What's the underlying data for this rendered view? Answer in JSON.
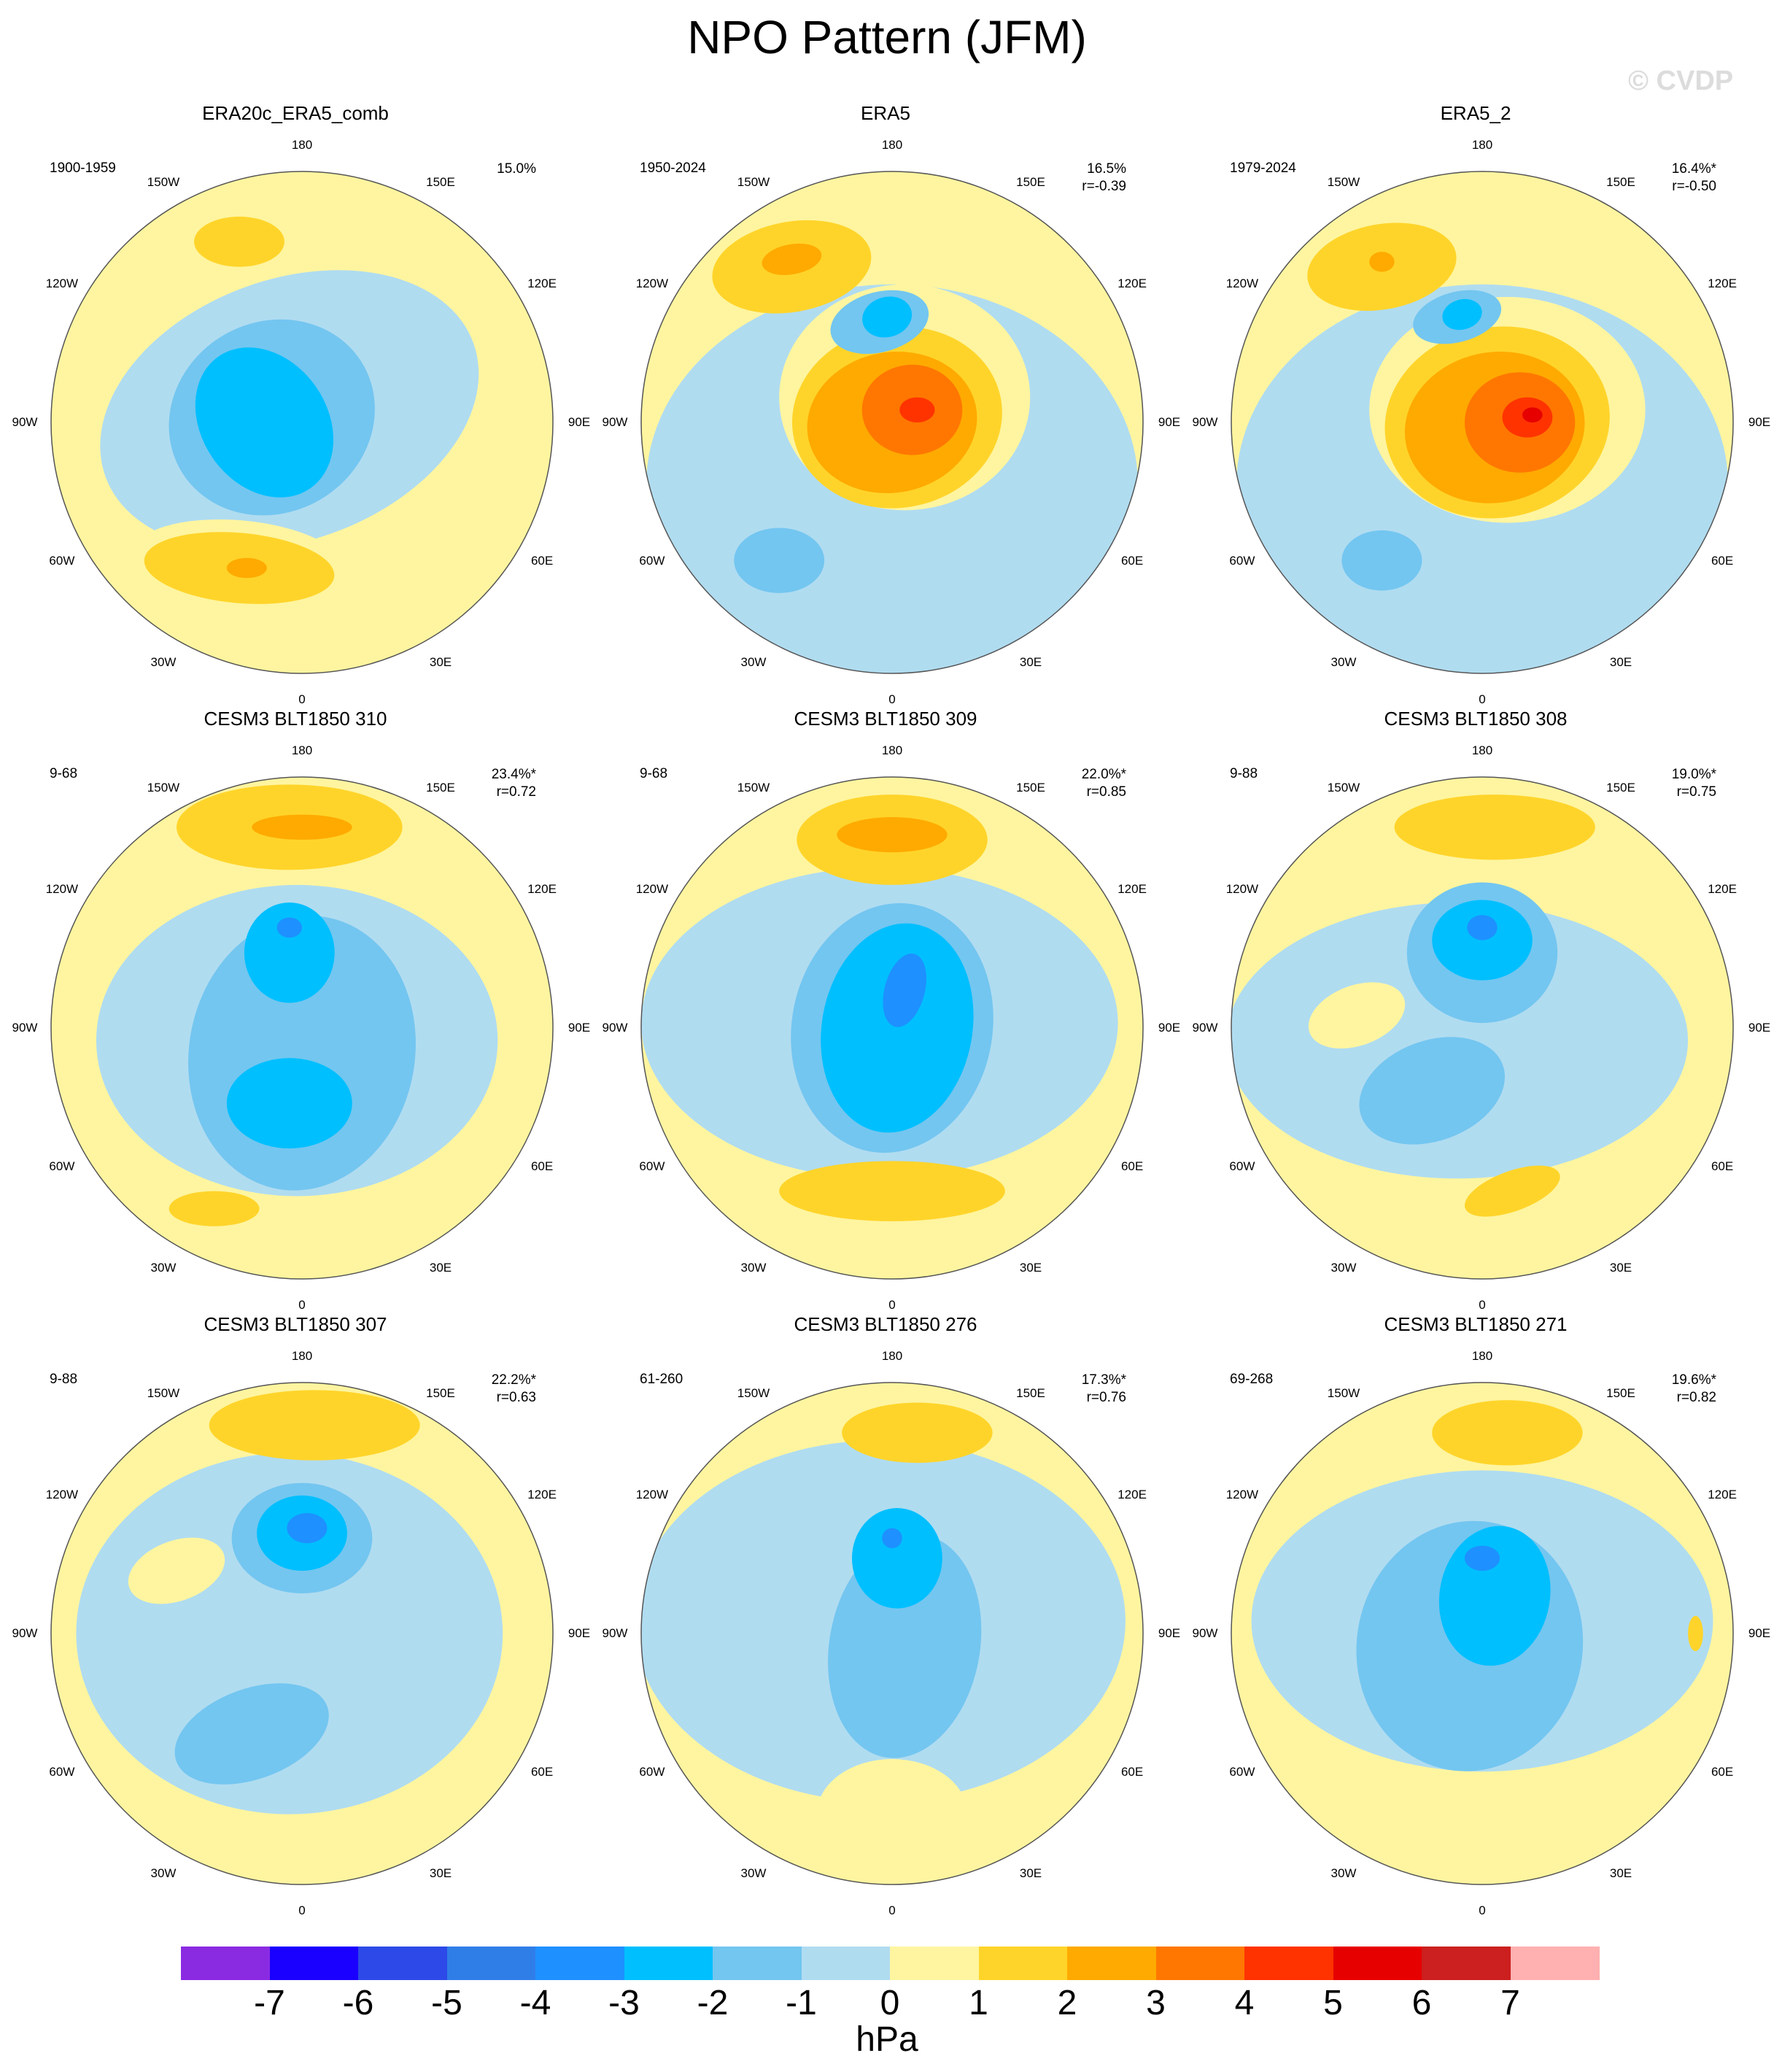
{
  "title": "NPO Pattern (JFM)",
  "watermark": "© CVDP",
  "chart_data": {
    "type": "heatmap",
    "projection": "north polar stereographic",
    "unit": "hPa",
    "longitude_labels": [
      "180",
      "150E",
      "120E",
      "90E",
      "60E",
      "30E",
      "0",
      "30W",
      "60W",
      "90W",
      "120W",
      "150W"
    ],
    "colorbar": {
      "ticks": [
        "-7",
        "-6",
        "-5",
        "-4",
        "-3",
        "-2",
        "-1",
        "0",
        "1",
        "2",
        "3",
        "4",
        "5",
        "6",
        "7"
      ],
      "colors": [
        "#8a2be2",
        "#1a00ff",
        "#2d4ae8",
        "#2f7ee8",
        "#1e90ff",
        "#00bfff",
        "#73c6f0",
        "#b0dcf0",
        "#fff5a0",
        "#ffd42a",
        "#ffaa00",
        "#ff7700",
        "#ff3300",
        "#e60000",
        "#cc1f1f",
        "#ffb0b0"
      ]
    },
    "panels": [
      {
        "title": "ERA20c_ERA5_comb",
        "years": "1900-1959",
        "variance": "15.0%",
        "r": "",
        "fields": [
          {
            "color": "#b0dcf0",
            "cx": -0.05,
            "cy": -0.05,
            "rx": 0.78,
            "ry": 0.52,
            "rot": -20
          },
          {
            "color": "#73c6f0",
            "cx": -0.12,
            "cy": -0.02,
            "rx": 0.42,
            "ry": 0.38,
            "rot": -30
          },
          {
            "color": "#00bfff",
            "cx": -0.15,
            "cy": 0.0,
            "rx": 0.25,
            "ry": 0.32,
            "rot": -35
          },
          {
            "color": "#fff5a0",
            "cx": -0.25,
            "cy": 0.55,
            "rx": 0.42,
            "ry": 0.16,
            "rot": 5
          },
          {
            "color": "#ffd42a",
            "cx": -0.25,
            "cy": 0.58,
            "rx": 0.38,
            "ry": 0.14,
            "rot": 5
          },
          {
            "color": "#ffaa00",
            "cx": -0.22,
            "cy": 0.58,
            "rx": 0.08,
            "ry": 0.04,
            "rot": 0
          },
          {
            "color": "#ffd42a",
            "cx": -0.25,
            "cy": -0.72,
            "rx": 0.18,
            "ry": 0.1,
            "rot": 0
          }
        ]
      },
      {
        "title": "ERA5",
        "years": "1950-2024",
        "variance": "16.5%",
        "r": "r=-0.39",
        "fields": [
          {
            "color": "#b0dcf0",
            "cx": 0.0,
            "cy": 0.25,
            "rx": 0.98,
            "ry": 0.8,
            "rot": 0
          },
          {
            "color": "#fff5a0",
            "cx": 0.05,
            "cy": -0.1,
            "rx": 0.5,
            "ry": 0.45,
            "rot": 0
          },
          {
            "color": "#ffd42a",
            "cx": 0.02,
            "cy": -0.02,
            "rx": 0.42,
            "ry": 0.36,
            "rot": -10
          },
          {
            "color": "#ffaa00",
            "cx": 0.0,
            "cy": 0.0,
            "rx": 0.34,
            "ry": 0.28,
            "rot": -10
          },
          {
            "color": "#ff7700",
            "cx": 0.08,
            "cy": -0.05,
            "rx": 0.2,
            "ry": 0.18,
            "rot": 0
          },
          {
            "color": "#ff3300",
            "cx": 0.1,
            "cy": -0.05,
            "rx": 0.07,
            "ry": 0.05,
            "rot": 0
          },
          {
            "color": "#ffd42a",
            "cx": -0.4,
            "cy": -0.62,
            "rx": 0.32,
            "ry": 0.18,
            "rot": -10
          },
          {
            "color": "#ffaa00",
            "cx": -0.4,
            "cy": -0.65,
            "rx": 0.12,
            "ry": 0.06,
            "rot": -10
          },
          {
            "color": "#73c6f0",
            "cx": -0.05,
            "cy": -0.4,
            "rx": 0.2,
            "ry": 0.12,
            "rot": -15
          },
          {
            "color": "#00bfff",
            "cx": -0.02,
            "cy": -0.42,
            "rx": 0.1,
            "ry": 0.08,
            "rot": -15
          },
          {
            "color": "#73c6f0",
            "cx": -0.45,
            "cy": 0.55,
            "rx": 0.18,
            "ry": 0.13,
            "rot": 0
          }
        ]
      },
      {
        "title": "ERA5_2",
        "years": "1979-2024",
        "variance": "16.4%*",
        "r": "r=-0.50",
        "fields": [
          {
            "color": "#b0dcf0",
            "cx": 0.0,
            "cy": 0.25,
            "rx": 0.98,
            "ry": 0.8,
            "rot": 0
          },
          {
            "color": "#fff5a0",
            "cx": 0.1,
            "cy": -0.05,
            "rx": 0.55,
            "ry": 0.45,
            "rot": 0
          },
          {
            "color": "#ffd42a",
            "cx": 0.06,
            "cy": 0.0,
            "rx": 0.45,
            "ry": 0.38,
            "rot": -10
          },
          {
            "color": "#ffaa00",
            "cx": 0.05,
            "cy": 0.02,
            "rx": 0.36,
            "ry": 0.3,
            "rot": -10
          },
          {
            "color": "#ff7700",
            "cx": 0.15,
            "cy": 0.0,
            "rx": 0.22,
            "ry": 0.2,
            "rot": 0
          },
          {
            "color": "#ff3300",
            "cx": 0.18,
            "cy": -0.02,
            "rx": 0.1,
            "ry": 0.08,
            "rot": 0
          },
          {
            "color": "#e60000",
            "cx": 0.2,
            "cy": -0.03,
            "rx": 0.04,
            "ry": 0.03,
            "rot": 0
          },
          {
            "color": "#ffd42a",
            "cx": -0.4,
            "cy": -0.62,
            "rx": 0.3,
            "ry": 0.17,
            "rot": -10
          },
          {
            "color": "#ffaa00",
            "cx": -0.4,
            "cy": -0.64,
            "rx": 0.05,
            "ry": 0.04,
            "rot": 0
          },
          {
            "color": "#73c6f0",
            "cx": -0.1,
            "cy": -0.42,
            "rx": 0.18,
            "ry": 0.1,
            "rot": -15
          },
          {
            "color": "#00bfff",
            "cx": -0.08,
            "cy": -0.43,
            "rx": 0.08,
            "ry": 0.06,
            "rot": -15
          },
          {
            "color": "#73c6f0",
            "cx": -0.4,
            "cy": 0.55,
            "rx": 0.16,
            "ry": 0.12,
            "rot": 0
          }
        ]
      },
      {
        "title": "CESM3 BLT1850 310",
        "years": "9-68",
        "variance": "23.4%*",
        "r": "r=0.72",
        "fields": [
          {
            "color": "#b0dcf0",
            "cx": -0.02,
            "cy": 0.05,
            "rx": 0.8,
            "ry": 0.62,
            "rot": 0
          },
          {
            "color": "#73c6f0",
            "cx": 0.0,
            "cy": 0.1,
            "rx": 0.45,
            "ry": 0.55,
            "rot": 10
          },
          {
            "color": "#00bfff",
            "cx": -0.05,
            "cy": -0.3,
            "rx": 0.18,
            "ry": 0.2,
            "rot": 0
          },
          {
            "color": "#1e90ff",
            "cx": -0.05,
            "cy": -0.4,
            "rx": 0.05,
            "ry": 0.04,
            "rot": 0
          },
          {
            "color": "#00bfff",
            "cx": -0.05,
            "cy": 0.3,
            "rx": 0.25,
            "ry": 0.18,
            "rot": 0
          },
          {
            "color": "#ffd42a",
            "cx": -0.05,
            "cy": -0.8,
            "rx": 0.45,
            "ry": 0.17,
            "rot": 0
          },
          {
            "color": "#ffaa00",
            "cx": 0.0,
            "cy": -0.8,
            "rx": 0.2,
            "ry": 0.05,
            "rot": 0
          },
          {
            "color": "#ffd42a",
            "cx": -0.35,
            "cy": 0.72,
            "rx": 0.18,
            "ry": 0.07,
            "rot": 0
          }
        ]
      },
      {
        "title": "CESM3 BLT1850 309",
        "years": "9-68",
        "variance": "22.0%*",
        "r": "r=0.85",
        "fields": [
          {
            "color": "#b0dcf0",
            "cx": -0.05,
            "cy": -0.02,
            "rx": 0.95,
            "ry": 0.62,
            "rot": 0
          },
          {
            "color": "#73c6f0",
            "cx": 0.0,
            "cy": 0.0,
            "rx": 0.4,
            "ry": 0.5,
            "rot": 10
          },
          {
            "color": "#00bfff",
            "cx": 0.02,
            "cy": 0.0,
            "rx": 0.3,
            "ry": 0.42,
            "rot": 10
          },
          {
            "color": "#1e90ff",
            "cx": 0.05,
            "cy": -0.15,
            "rx": 0.08,
            "ry": 0.15,
            "rot": 15
          },
          {
            "color": "#ffd42a",
            "cx": 0.0,
            "cy": -0.75,
            "rx": 0.38,
            "ry": 0.18,
            "rot": 0
          },
          {
            "color": "#ffaa00",
            "cx": 0.0,
            "cy": -0.77,
            "rx": 0.22,
            "ry": 0.07,
            "rot": 0
          },
          {
            "color": "#ffd42a",
            "cx": 0.0,
            "cy": 0.65,
            "rx": 0.45,
            "ry": 0.12,
            "rot": 0
          }
        ]
      },
      {
        "title": "CESM3 BLT1850 308",
        "years": "9-88",
        "variance": "19.0%*",
        "r": "r=0.75",
        "fields": [
          {
            "color": "#b0dcf0",
            "cx": -0.1,
            "cy": 0.05,
            "rx": 0.92,
            "ry": 0.55,
            "rot": 0
          },
          {
            "color": "#73c6f0",
            "cx": -0.2,
            "cy": 0.25,
            "rx": 0.3,
            "ry": 0.2,
            "rot": -20
          },
          {
            "color": "#73c6f0",
            "cx": 0.0,
            "cy": -0.3,
            "rx": 0.3,
            "ry": 0.28,
            "rot": 0
          },
          {
            "color": "#00bfff",
            "cx": 0.0,
            "cy": -0.35,
            "rx": 0.2,
            "ry": 0.16,
            "rot": 0
          },
          {
            "color": "#1e90ff",
            "cx": 0.0,
            "cy": -0.4,
            "rx": 0.06,
            "ry": 0.05,
            "rot": 0
          },
          {
            "color": "#fff5a0",
            "cx": -0.5,
            "cy": -0.05,
            "rx": 0.2,
            "ry": 0.12,
            "rot": -20
          },
          {
            "color": "#ffd42a",
            "cx": 0.05,
            "cy": -0.8,
            "rx": 0.4,
            "ry": 0.13,
            "rot": 0
          },
          {
            "color": "#ffd42a",
            "cx": 0.12,
            "cy": 0.65,
            "rx": 0.2,
            "ry": 0.08,
            "rot": -20
          }
        ]
      },
      {
        "title": "CESM3 BLT1850 307",
        "years": "9-88",
        "variance": "22.2%*",
        "r": "r=0.63",
        "fields": [
          {
            "color": "#b0dcf0",
            "cx": -0.05,
            "cy": 0.0,
            "rx": 0.85,
            "ry": 0.72,
            "rot": 0
          },
          {
            "color": "#73c6f0",
            "cx": -0.2,
            "cy": 0.4,
            "rx": 0.32,
            "ry": 0.18,
            "rot": -20
          },
          {
            "color": "#73c6f0",
            "cx": 0.0,
            "cy": -0.38,
            "rx": 0.28,
            "ry": 0.22,
            "rot": 0
          },
          {
            "color": "#00bfff",
            "cx": 0.0,
            "cy": -0.4,
            "rx": 0.18,
            "ry": 0.15,
            "rot": 0
          },
          {
            "color": "#1e90ff",
            "cx": 0.02,
            "cy": -0.42,
            "rx": 0.08,
            "ry": 0.06,
            "rot": 0
          },
          {
            "color": "#fff5a0",
            "cx": -0.5,
            "cy": -0.25,
            "rx": 0.2,
            "ry": 0.12,
            "rot": -20
          },
          {
            "color": "#ffd42a",
            "cx": 0.05,
            "cy": -0.83,
            "rx": 0.42,
            "ry": 0.14,
            "rot": 0
          }
        ]
      },
      {
        "title": "CESM3 BLT1850 276",
        "years": "61-260",
        "variance": "17.3%*",
        "r": "r=0.76",
        "fields": [
          {
            "color": "#b0dcf0",
            "cx": -0.05,
            "cy": -0.05,
            "rx": 0.98,
            "ry": 0.72,
            "rot": 0
          },
          {
            "color": "#73c6f0",
            "cx": 0.05,
            "cy": 0.05,
            "rx": 0.3,
            "ry": 0.45,
            "rot": 10
          },
          {
            "color": "#00bfff",
            "cx": 0.02,
            "cy": -0.3,
            "rx": 0.18,
            "ry": 0.2,
            "rot": 0
          },
          {
            "color": "#1e90ff",
            "cx": 0.0,
            "cy": -0.38,
            "rx": 0.04,
            "ry": 0.04,
            "rot": 0
          },
          {
            "color": "#fff5a0",
            "cx": 0.0,
            "cy": 0.72,
            "rx": 0.3,
            "ry": 0.22,
            "rot": 0
          },
          {
            "color": "#ffd42a",
            "cx": 0.1,
            "cy": -0.8,
            "rx": 0.3,
            "ry": 0.12,
            "rot": 0
          }
        ]
      },
      {
        "title": "CESM3 BLT1850 271",
        "years": "69-268",
        "variance": "19.6%*",
        "r": "r=0.82",
        "fields": [
          {
            "color": "#b0dcf0",
            "cx": 0.0,
            "cy": -0.05,
            "rx": 0.92,
            "ry": 0.6,
            "rot": 0
          },
          {
            "color": "#73c6f0",
            "cx": -0.05,
            "cy": 0.05,
            "rx": 0.45,
            "ry": 0.5,
            "rot": 10
          },
          {
            "color": "#00bfff",
            "cx": 0.05,
            "cy": -0.15,
            "rx": 0.22,
            "ry": 0.28,
            "rot": 10
          },
          {
            "color": "#1e90ff",
            "cx": 0.0,
            "cy": -0.3,
            "rx": 0.07,
            "ry": 0.05,
            "rot": 0
          },
          {
            "color": "#ffd42a",
            "cx": 0.1,
            "cy": -0.8,
            "rx": 0.3,
            "ry": 0.13,
            "rot": 0
          },
          {
            "color": "#ffd42a",
            "cx": 0.85,
            "cy": 0.0,
            "rx": 0.03,
            "ry": 0.07,
            "rot": 0
          }
        ]
      }
    ]
  }
}
